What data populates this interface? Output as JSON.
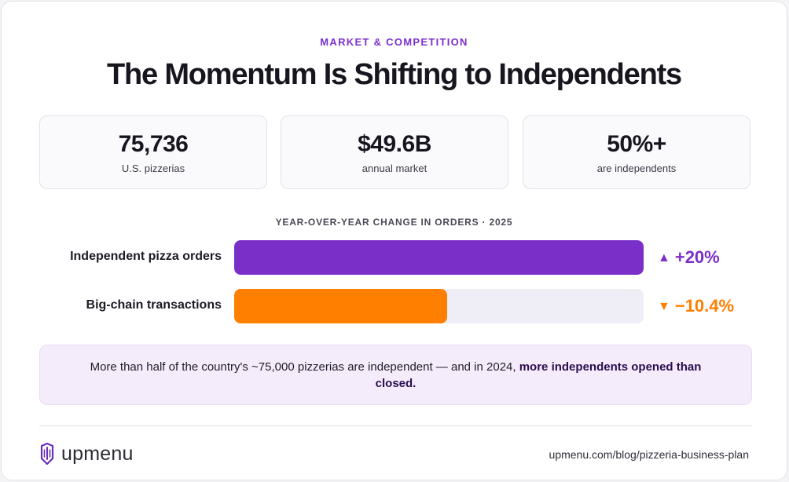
{
  "header": {
    "eyebrow": "MARKET & COMPETITION",
    "title": "The Momentum Is Shifting to Independents"
  },
  "stats": [
    {
      "value": "75,736",
      "label": "U.S. pizzerias"
    },
    {
      "value": "$49.6B",
      "label": "annual market"
    },
    {
      "value": "50%+",
      "label": "are independents"
    }
  ],
  "chart_data": {
    "type": "bar",
    "orientation": "horizontal",
    "title": "YEAR-OVER-YEAR CHANGE IN ORDERS · 2025",
    "categories": [
      "Independent pizza orders",
      "Big-chain transactions"
    ],
    "values": [
      20,
      -10.4
    ],
    "value_labels": [
      "+20%",
      "−10.4%"
    ],
    "xlim": [
      0,
      20
    ],
    "colors": [
      "#7b2fc9",
      "#ff7f00"
    ],
    "arrow_icons": [
      "triangle-up-icon",
      "triangle-down-icon"
    ],
    "grid": false,
    "legend": "none"
  },
  "note": {
    "text_before": "More than half of the country's ~75,000 pizzerias are independent — and in 2024, ",
    "text_bold": "more independents opened than closed."
  },
  "footer": {
    "logo_text": "upmenu",
    "logo_icon": "upmenu-logo-icon",
    "source_url": "upmenu.com/blog/pizzeria-business-plan"
  },
  "colors": {
    "accent": "#7b2fd0",
    "negative": "#ff7f00",
    "track": "#efeef6",
    "note_bg": "#f5ecfb"
  }
}
